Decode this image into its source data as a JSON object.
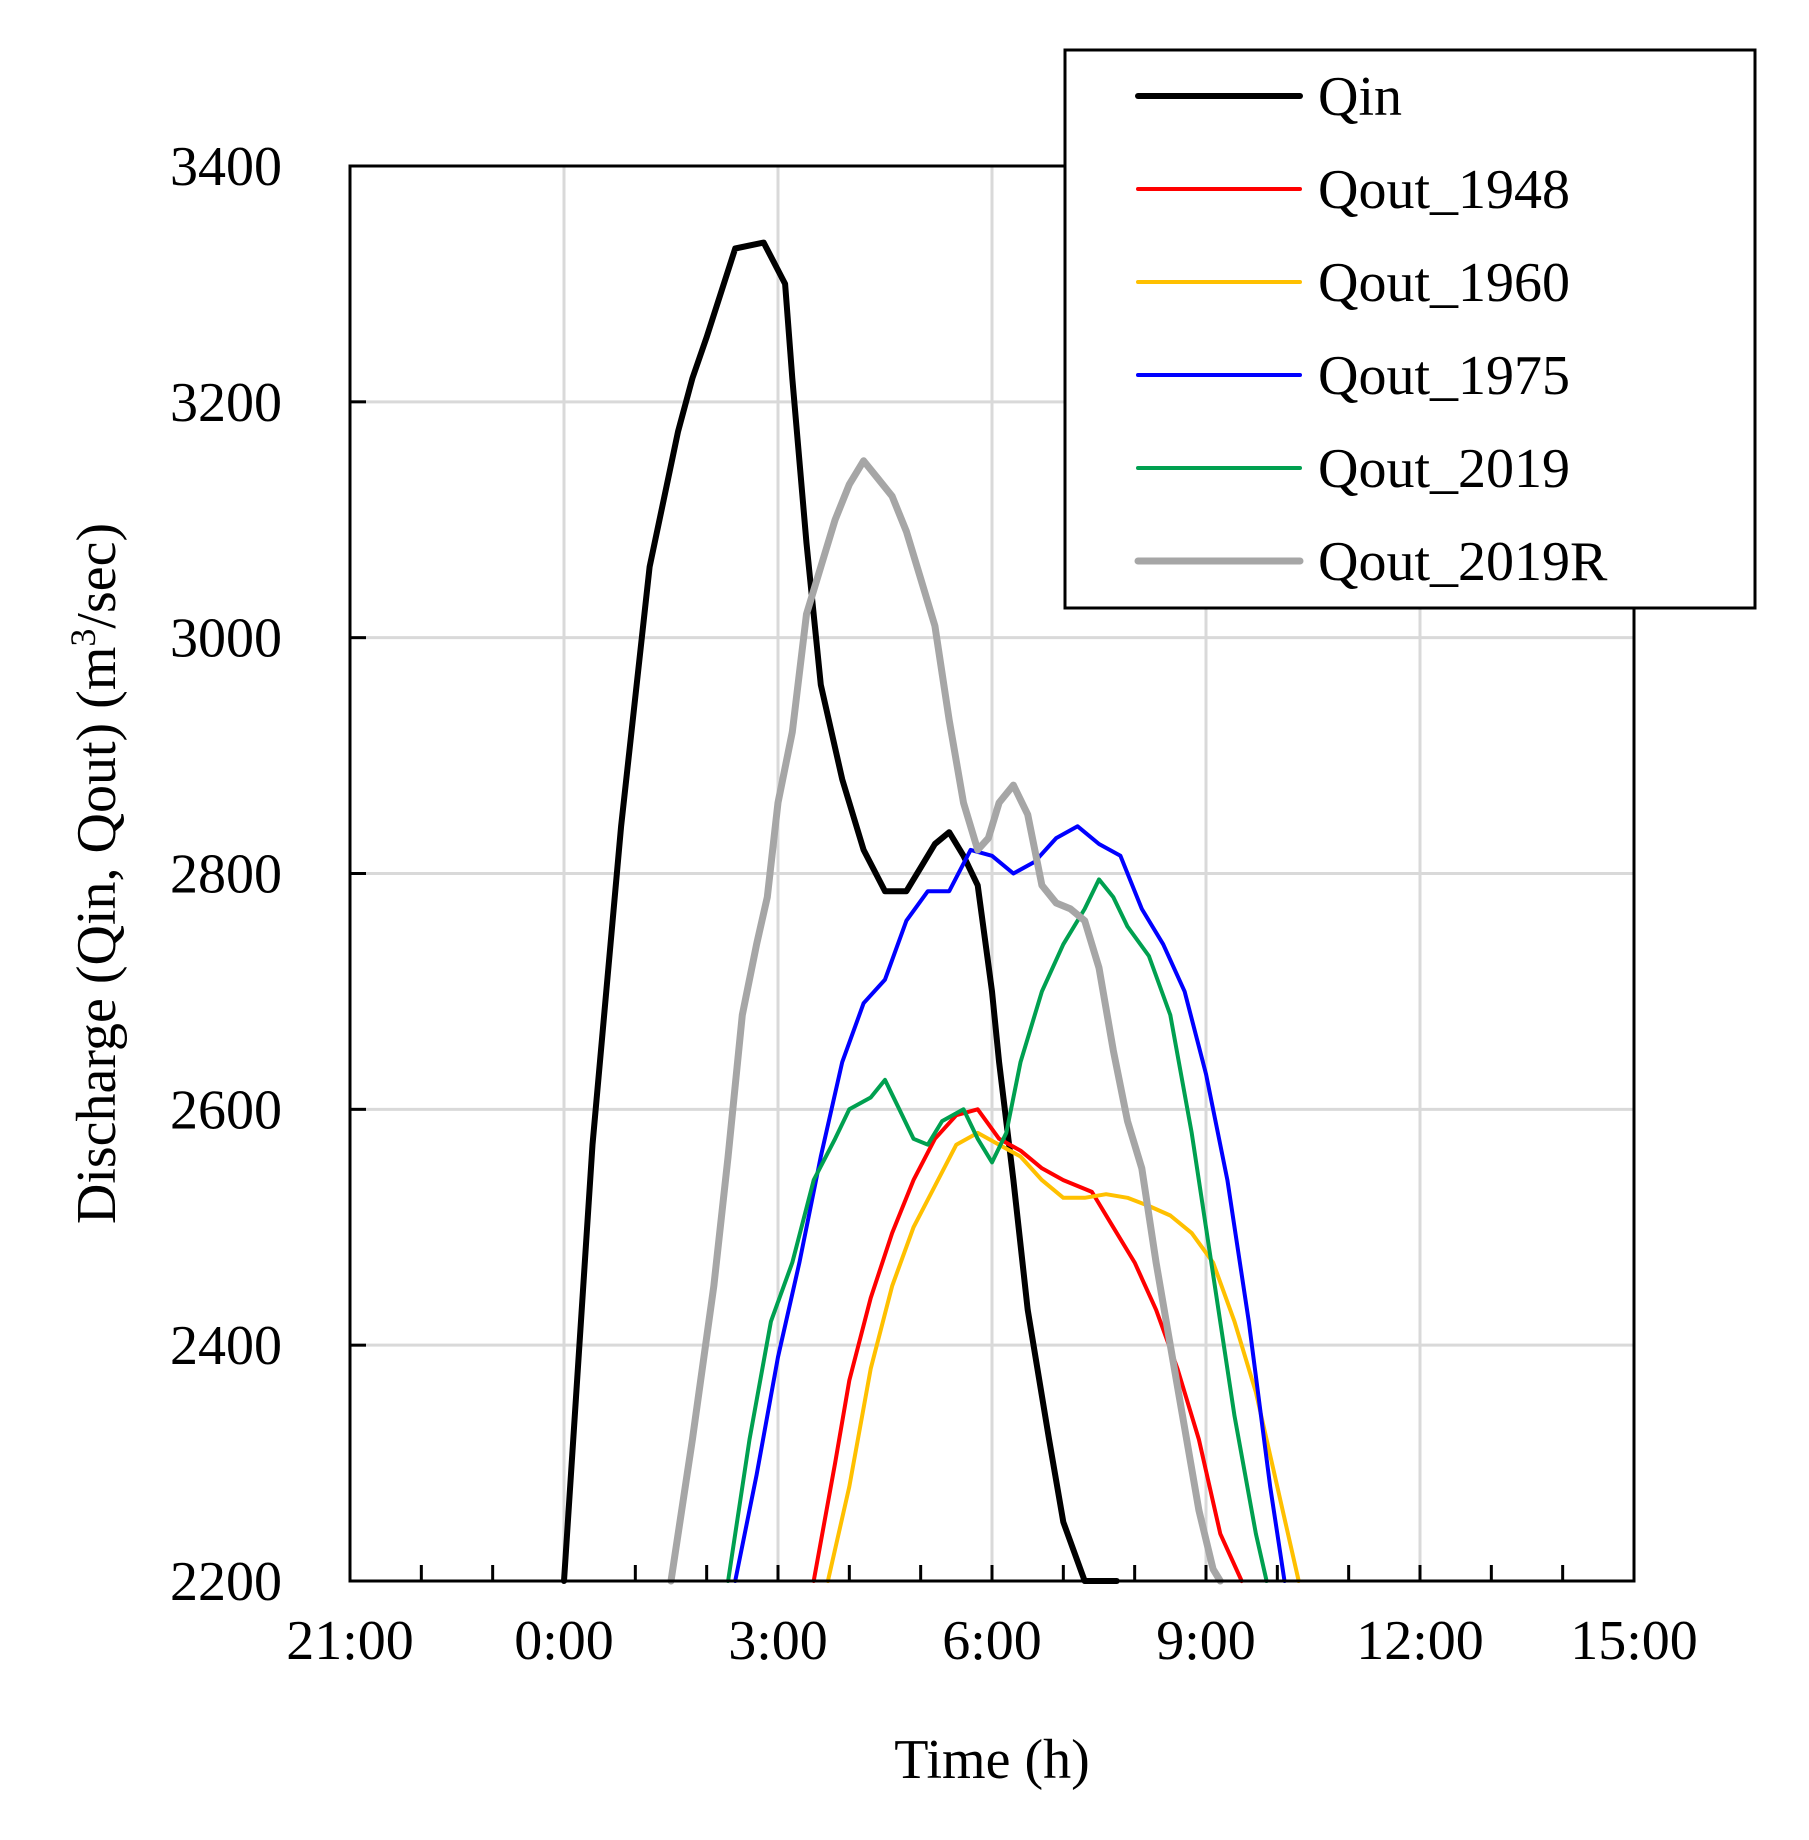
{
  "chart_data": {
    "type": "line",
    "xlabel": "Time (h)",
    "ylabel_main": "Discharge (Qin, Qout) (m",
    "ylabel_sup": "3",
    "ylabel_end": "/sec)",
    "x_unit": "hours relative to 0:00",
    "x_ticks": [
      {
        "value": -3,
        "label": "21:00"
      },
      {
        "value": 0,
        "label": "0:00"
      },
      {
        "value": 3,
        "label": "3:00"
      },
      {
        "value": 6,
        "label": "6:00"
      },
      {
        "value": 9,
        "label": "9:00"
      },
      {
        "value": 12,
        "label": "12:00"
      },
      {
        "value": 15,
        "label": "15:00"
      }
    ],
    "y_ticks": [
      2200,
      2400,
      2600,
      2800,
      3000,
      3200,
      3400
    ],
    "xlim": [
      -3,
      15
    ],
    "ylim": [
      2200,
      3400
    ],
    "grid": true,
    "legend_position": "top-right",
    "series": [
      {
        "name": "Qin",
        "color": "#000000",
        "width": 6,
        "x": [
          0.0,
          0.4,
          0.8,
          1.2,
          1.6,
          1.8,
          2.0,
          2.4,
          2.8,
          3.1,
          3.2,
          3.4,
          3.6,
          3.9,
          4.2,
          4.5,
          4.8,
          5.0,
          5.2,
          5.4,
          5.6,
          5.8,
          6.0,
          6.1,
          6.3,
          6.5,
          6.8,
          7.0,
          7.3,
          7.6,
          7.75
        ],
        "y": [
          2200,
          2570,
          2840,
          3060,
          3175,
          3220,
          3255,
          3330,
          3335,
          3300,
          3220,
          3080,
          2960,
          2880,
          2820,
          2785,
          2785,
          2805,
          2825,
          2835,
          2815,
          2790,
          2700,
          2640,
          2540,
          2430,
          2320,
          2250,
          2200,
          2200,
          2200
        ]
      },
      {
        "name": "Qout_1948",
        "color": "#ff0000",
        "width": 4,
        "x": [
          3.5,
          3.8,
          4.0,
          4.3,
          4.6,
          4.9,
          5.2,
          5.5,
          5.8,
          6.1,
          6.4,
          6.7,
          7.0,
          7.4,
          7.7,
          8.0,
          8.3,
          8.6,
          8.9,
          9.2,
          9.5
        ],
        "y": [
          2200,
          2300,
          2370,
          2440,
          2495,
          2540,
          2575,
          2595,
          2600,
          2575,
          2565,
          2550,
          2540,
          2530,
          2500,
          2470,
          2430,
          2380,
          2320,
          2240,
          2200
        ]
      },
      {
        "name": "Qout_1960",
        "color": "#ffc000",
        "width": 4,
        "x": [
          3.7,
          4.0,
          4.3,
          4.6,
          4.9,
          5.2,
          5.5,
          5.8,
          6.1,
          6.4,
          6.7,
          7.0,
          7.3,
          7.6,
          7.9,
          8.2,
          8.5,
          8.8,
          9.1,
          9.4,
          9.7,
          10.0,
          10.3
        ],
        "y": [
          2200,
          2280,
          2380,
          2450,
          2500,
          2535,
          2570,
          2580,
          2570,
          2560,
          2540,
          2525,
          2525,
          2528,
          2525,
          2518,
          2510,
          2495,
          2470,
          2420,
          2360,
          2280,
          2200
        ]
      },
      {
        "name": "Qout_1975",
        "color": "#0000ff",
        "width": 4,
        "x": [
          2.4,
          2.7,
          3.0,
          3.3,
          3.6,
          3.9,
          4.2,
          4.5,
          4.8,
          5.1,
          5.4,
          5.7,
          6.0,
          6.3,
          6.6,
          6.9,
          7.2,
          7.5,
          7.8,
          8.1,
          8.4,
          8.7,
          9.0,
          9.3,
          9.6,
          9.9,
          10.1
        ],
        "y": [
          2200,
          2290,
          2390,
          2470,
          2560,
          2640,
          2690,
          2710,
          2760,
          2785,
          2785,
          2820,
          2815,
          2800,
          2810,
          2830,
          2840,
          2825,
          2815,
          2770,
          2740,
          2700,
          2630,
          2540,
          2420,
          2280,
          2200
        ]
      },
      {
        "name": "Qout_2019",
        "color": "#00a050",
        "width": 4,
        "x": [
          2.3,
          2.6,
          2.9,
          3.2,
          3.5,
          3.8,
          4.0,
          4.3,
          4.5,
          4.7,
          4.9,
          5.1,
          5.3,
          5.6,
          5.8,
          6.0,
          6.2,
          6.4,
          6.7,
          7.0,
          7.3,
          7.5,
          7.7,
          7.9,
          8.2,
          8.5,
          8.8,
          9.1,
          9.4,
          9.7,
          9.85
        ],
        "y": [
          2200,
          2320,
          2420,
          2470,
          2540,
          2575,
          2600,
          2610,
          2625,
          2600,
          2575,
          2570,
          2590,
          2600,
          2575,
          2555,
          2580,
          2640,
          2700,
          2740,
          2770,
          2795,
          2780,
          2755,
          2730,
          2680,
          2580,
          2460,
          2340,
          2240,
          2200
        ]
      },
      {
        "name": "Qout_2019R",
        "color": "#a6a6a6",
        "width": 7,
        "x": [
          1.5,
          1.8,
          2.1,
          2.3,
          2.5,
          2.7,
          2.85,
          3.0,
          3.2,
          3.4,
          3.6,
          3.8,
          4.0,
          4.2,
          4.4,
          4.6,
          4.8,
          5.0,
          5.2,
          5.4,
          5.6,
          5.8,
          5.95,
          6.1,
          6.3,
          6.5,
          6.7,
          6.9,
          7.1,
          7.3,
          7.5,
          7.7,
          7.9,
          8.1,
          8.3,
          8.5,
          8.7,
          8.9,
          9.1,
          9.2
        ],
        "y": [
          2200,
          2320,
          2450,
          2560,
          2680,
          2740,
          2780,
          2860,
          2920,
          3020,
          3060,
          3100,
          3130,
          3150,
          3135,
          3120,
          3090,
          3050,
          3010,
          2930,
          2860,
          2820,
          2830,
          2860,
          2875,
          2850,
          2790,
          2775,
          2770,
          2760,
          2720,
          2650,
          2590,
          2550,
          2470,
          2400,
          2330,
          2260,
          2210,
          2200
        ]
      }
    ]
  }
}
